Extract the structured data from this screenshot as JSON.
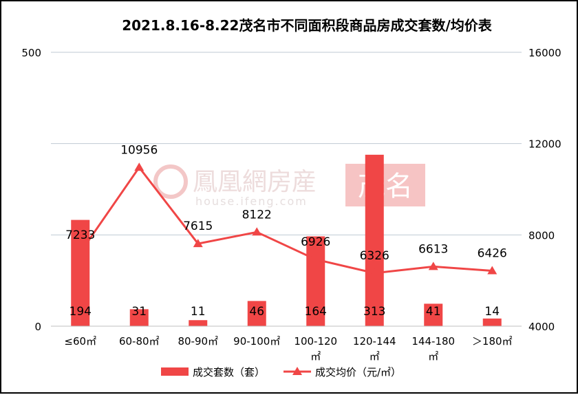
{
  "chart_data": {
    "type": "bar",
    "title": "2021.8.16-8.22茂名市不同面积段商品房成交套数/均价表",
    "categories": [
      "≤60㎡",
      "60-80㎡",
      "80-90㎡",
      "90-100㎡",
      "100-120㎡",
      "120-144㎡",
      "144-180㎡",
      ">180㎡"
    ],
    "category_lines": [
      [
        "≤60㎡"
      ],
      [
        "60-80㎡"
      ],
      [
        "80-90㎡"
      ],
      [
        "90-100㎡"
      ],
      [
        "100-120",
        "㎡"
      ],
      [
        "120-144",
        "㎡"
      ],
      [
        "144-180",
        "㎡"
      ],
      [
        "＞180㎡"
      ]
    ],
    "series": [
      {
        "name": "成交套数（套）",
        "type": "bar",
        "axis": "left",
        "values": [
          194,
          31,
          11,
          46,
          164,
          313,
          41,
          14
        ],
        "color": "#f04646"
      },
      {
        "name": "成交均价（元/㎡）",
        "type": "line",
        "axis": "right",
        "marker": "triangle",
        "values": [
          7233,
          10956,
          7615,
          8122,
          6926,
          6326,
          6613,
          6426
        ],
        "color": "#f04646"
      }
    ],
    "left_axis": {
      "ylim": [
        0,
        500
      ],
      "ticks": [
        "0",
        "500"
      ]
    },
    "right_axis": {
      "ylim": [
        4000,
        16000
      ],
      "ticks": [
        "4000",
        "8000",
        "12000",
        "16000"
      ]
    },
    "grid": true,
    "legend_position": "bottom"
  },
  "watermark": {
    "text": "鳳凰網房産",
    "subtext": "house.ifeng.com",
    "badge": "茂名"
  }
}
